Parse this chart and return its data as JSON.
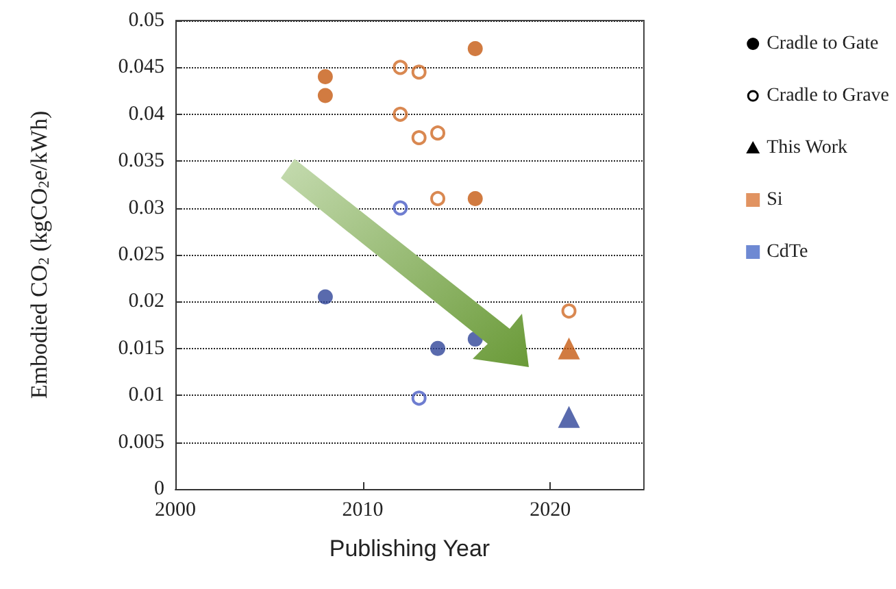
{
  "chart_data": {
    "type": "scatter",
    "xlabel": "Publishing Year",
    "ylabel": "Embodied CO$_{2}$ (kgCO$_{2}$e/kWh)",
    "xlim": [
      2000,
      2025
    ],
    "xticks": [
      2000,
      2010,
      2020
    ],
    "ylim": [
      0,
      0.05
    ],
    "yticks": [
      0,
      0.005,
      0.01,
      0.015,
      0.02,
      0.025,
      0.03,
      0.035,
      0.04,
      0.045,
      0.05
    ],
    "grid": "y",
    "legend": "right",
    "series": [
      {
        "name": "Cradle to Gate",
        "color": "#000000",
        "marker": "circle",
        "x": [
          2008,
          2008,
          2016,
          2016,
          2008,
          2014,
          2016
        ],
        "values": [
          0.044,
          0.042,
          0.047,
          0.031,
          0.0205,
          0.015,
          0.016
        ],
        "colors": [
          "#c55a11",
          "#c55a11",
          "#c55a11",
          "#c55a11",
          "#2f4599",
          "#2f4599",
          "#2f4599"
        ]
      },
      {
        "name": "Cradle to Grave",
        "color": "#000000",
        "marker": "circle-open",
        "x": [
          2012,
          2013,
          2012,
          2013,
          2014,
          2014,
          2021,
          2012,
          2013
        ],
        "values": [
          0.045,
          0.0445,
          0.04,
          0.0375,
          0.038,
          0.031,
          0.019,
          0.03,
          0.0097
        ],
        "colors": [
          "#d06a25",
          "#d06a25",
          "#d06a25",
          "#d06a25",
          "#d06a25",
          "#d06a25",
          "#d06a25",
          "#4a5cc4",
          "#4a5cc4"
        ]
      },
      {
        "name": "This Work",
        "color": "#000000",
        "marker": "triangle",
        "x": [
          2021,
          2021
        ],
        "values": [
          0.015,
          0.0077
        ],
        "colors": [
          "#c55a11",
          "#2f4599"
        ]
      },
      {
        "name": "Si",
        "color": "#d9783a",
        "marker": "square"
      },
      {
        "name": "CdTe",
        "color": "#4a6bc8",
        "marker": "square"
      }
    ]
  }
}
